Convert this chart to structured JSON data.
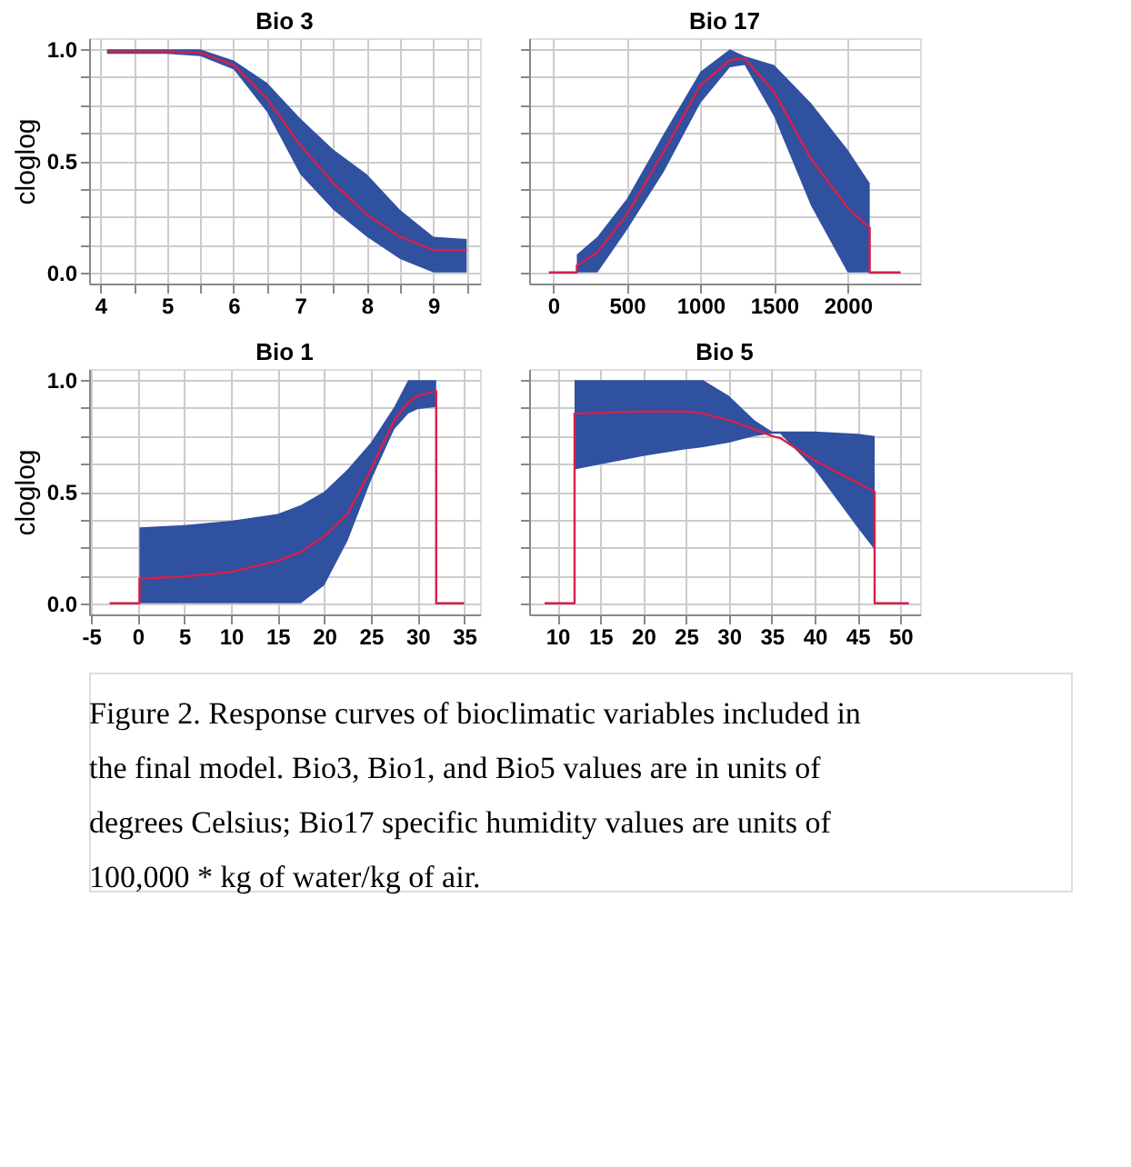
{
  "chart_data": [
    {
      "type": "line",
      "title": "Bio 3",
      "ylabel": "cloglog",
      "grid": true,
      "xlim": [
        3.83,
        9.7
      ],
      "ylim": [
        -0.05,
        1.05
      ],
      "xticks": [
        4,
        {
          "value": 4.5,
          "label": null
        },
        5,
        {
          "value": 5.5,
          "label": null
        },
        6,
        {
          "value": 6.5,
          "label": null
        },
        7,
        {
          "value": 7.5,
          "label": null
        },
        8,
        {
          "value": 8.5,
          "label": null
        },
        9,
        {
          "value": 9.5,
          "label": null
        }
      ],
      "yticks": [
        {
          "value": 0,
          "label": "0.0"
        },
        {
          "value": 0.125,
          "label": null
        },
        {
          "value": 0.25,
          "label": null
        },
        {
          "value": 0.375,
          "label": null
        },
        {
          "value": 0.5,
          "label": "0.5"
        },
        {
          "value": 0.625,
          "label": null
        },
        {
          "value": 0.75,
          "label": null
        },
        {
          "value": 0.875,
          "label": null
        },
        {
          "value": 1,
          "label": "1.0"
        }
      ],
      "series": [
        {
          "color": "#d6204a",
          "x": [
            4.1,
            5,
            5.5,
            6,
            6.5,
            7,
            7.5,
            8,
            8.5,
            9,
            9.5
          ],
          "values": [
            0.99,
            0.99,
            0.985,
            0.93,
            0.78,
            0.57,
            0.4,
            0.26,
            0.16,
            0.1,
            0.1
          ],
          "lower": [
            0.98,
            0.98,
            0.97,
            0.91,
            0.72,
            0.44,
            0.28,
            0.16,
            0.06,
            0.0,
            0.0
          ],
          "upper": [
            1.0,
            1.0,
            1.0,
            0.95,
            0.85,
            0.69,
            0.55,
            0.44,
            0.28,
            0.16,
            0.15
          ]
        }
      ]
    },
    {
      "type": "line",
      "title": "Bio 17",
      "grid": true,
      "tick_labels": "x",
      "xlim": [
        -164,
        2492
      ],
      "ylim": [
        -0.05,
        1.05
      ],
      "xticks": [
        0,
        500,
        1000,
        1500,
        2000
      ],
      "yticks": [
        {
          "value": 0,
          "label": null
        },
        {
          "value": 0.125,
          "label": null
        },
        {
          "value": 0.25,
          "label": null
        },
        {
          "value": 0.375,
          "label": null
        },
        {
          "value": 0.5,
          "label": null
        },
        {
          "value": 0.625,
          "label": null
        },
        {
          "value": 0.75,
          "label": null
        },
        {
          "value": 0.875,
          "label": null
        },
        {
          "value": 1,
          "label": null
        }
      ],
      "series": [
        {
          "color": "#d6204a",
          "x": [
            -30,
            160,
            160,
            300,
            500,
            750,
            1000,
            1200,
            1300,
            1500,
            1750,
            2000,
            2150,
            2150,
            2360
          ],
          "values": [
            0,
            0,
            0.03,
            0.09,
            0.26,
            0.54,
            0.84,
            0.95,
            0.96,
            0.81,
            0.51,
            0.29,
            0.2,
            0,
            0
          ],
          "lower": [
            null,
            null,
            0.0,
            0.0,
            0.19,
            0.45,
            0.76,
            0.92,
            0.93,
            0.7,
            0.3,
            0.0,
            0.0,
            null,
            null
          ],
          "upper": [
            null,
            null,
            0.08,
            0.16,
            0.33,
            0.62,
            0.9,
            1.0,
            0.97,
            0.93,
            0.76,
            0.55,
            0.4,
            null,
            null
          ]
        }
      ]
    },
    {
      "type": "line",
      "title": "Bio 1",
      "ylabel": "cloglog",
      "grid": true,
      "xlim": [
        -5.2,
        36.7
      ],
      "ylim": [
        -0.05,
        1.05
      ],
      "xticks": [
        -5,
        0,
        5,
        10,
        15,
        20,
        25,
        30,
        35
      ],
      "yticks": [
        {
          "value": 0,
          "label": "0.0"
        },
        {
          "value": 0.125,
          "label": null
        },
        {
          "value": 0.25,
          "label": null
        },
        {
          "value": 0.375,
          "label": null
        },
        {
          "value": 0.5,
          "label": "0.5"
        },
        {
          "value": 0.625,
          "label": null
        },
        {
          "value": 0.75,
          "label": null
        },
        {
          "value": 0.875,
          "label": null
        },
        {
          "value": 1,
          "label": "1.0"
        }
      ],
      "series": [
        {
          "color": "#d6204a",
          "x": [
            -3,
            0.2,
            0.2,
            5,
            10,
            15,
            17.5,
            20,
            22.5,
            25,
            27.5,
            29,
            30,
            32,
            32,
            35
          ],
          "values": [
            0,
            0,
            0.11,
            0.12,
            0.14,
            0.19,
            0.23,
            0.3,
            0.4,
            0.6,
            0.82,
            0.9,
            0.93,
            0.95,
            0,
            0
          ],
          "lower": [
            null,
            null,
            0.0,
            0.0,
            0.0,
            0.0,
            0.0,
            0.08,
            0.28,
            0.55,
            0.78,
            0.85,
            0.87,
            0.88,
            null,
            null
          ],
          "upper": [
            null,
            null,
            0.34,
            0.35,
            0.37,
            0.4,
            0.44,
            0.5,
            0.6,
            0.72,
            0.88,
            1.0,
            1.0,
            1.0,
            null,
            null
          ]
        }
      ]
    },
    {
      "type": "line",
      "title": "Bio 5",
      "grid": true,
      "tick_labels": "x",
      "xlim": [
        6.7,
        52.3
      ],
      "ylim": [
        -0.05,
        1.05
      ],
      "xticks": [
        10,
        15,
        20,
        25,
        30,
        35,
        40,
        45,
        50
      ],
      "yticks": [
        {
          "value": 0,
          "label": null
        },
        {
          "value": 0.125,
          "label": null
        },
        {
          "value": 0.25,
          "label": null
        },
        {
          "value": 0.375,
          "label": null
        },
        {
          "value": 0.5,
          "label": null
        },
        {
          "value": 0.625,
          "label": null
        },
        {
          "value": 0.75,
          "label": null
        },
        {
          "value": 0.875,
          "label": null
        },
        {
          "value": 1,
          "label": null
        }
      ],
      "series": [
        {
          "color": "#d6204a",
          "x": [
            8.5,
            12,
            12,
            20,
            25,
            27,
            30,
            33,
            35,
            36,
            40,
            45,
            47,
            47,
            51
          ],
          "values": [
            0,
            0,
            0.85,
            0.86,
            0.86,
            0.85,
            0.82,
            0.78,
            0.75,
            0.74,
            0.64,
            0.54,
            0.5,
            0,
            0
          ],
          "lower": [
            null,
            null,
            0.6,
            0.66,
            0.69,
            0.7,
            0.72,
            0.75,
            0.76,
            0.76,
            0.6,
            0.34,
            0.24,
            null,
            null
          ],
          "upper": [
            null,
            null,
            1.0,
            1.0,
            1.0,
            1.0,
            0.93,
            0.82,
            0.77,
            0.77,
            0.77,
            0.76,
            0.75,
            null,
            null
          ]
        }
      ],
      "annotations": [
        "Figure 2. Response curves of bioclimatic variables included in the final model. Bio3, Bio1, and Bio5 values are in units of degrees Celsius; Bio17 specific humidity values are units of 100,000 * kg of water/kg of air."
      ]
    }
  ]
}
